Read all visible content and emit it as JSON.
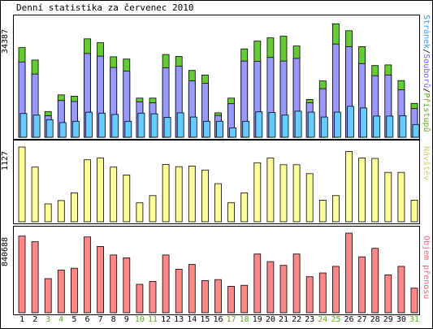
{
  "title": "Denní statistika za červenec 2010",
  "colors": {
    "visits": "#66cc33",
    "pages": "#9999ff",
    "files": "#66ccff",
    "hosts": "#ffff99",
    "traffic": "#ff8888",
    "weekend_day": "#66aa22",
    "weekday": "#000000",
    "label_visits": "#66aa22",
    "label_pages": "#6666ff",
    "label_files": "#3399ff",
    "label_hosts": "#cccc66",
    "label_traffic": "#ee6677"
  },
  "legend": {
    "top_files": "Stránek",
    "top_pages": "Souborů",
    "top_visits": "Přístupů",
    "sep": "/",
    "mid": "Návštěv",
    "bottom": "Objem přenosu"
  },
  "chart_data": [
    {
      "type": "bar",
      "ylabel": "34387",
      "ylim": [
        0,
        34387
      ],
      "categories": [
        "1",
        "2",
        "3",
        "4",
        "5",
        "6",
        "7",
        "8",
        "9",
        "10",
        "11",
        "12",
        "13",
        "14",
        "15",
        "16",
        "17",
        "18",
        "19",
        "20",
        "21",
        "22",
        "23",
        "24",
        "25",
        "26",
        "27",
        "28",
        "29",
        "30",
        "31"
      ],
      "series": [
        {
          "name": "Přístupů",
          "values": [
            27500,
            23700,
            7900,
            13000,
            12600,
            30200,
            29000,
            24700,
            24000,
            12000,
            12000,
            25400,
            24800,
            20500,
            19100,
            7500,
            12000,
            27100,
            29500,
            30500,
            31000,
            28000,
            11600,
            17300,
            34800,
            32700,
            27800,
            22000,
            22200,
            17400,
            10400
          ]
        },
        {
          "name": "Souborů",
          "values": [
            23100,
            19400,
            6600,
            11300,
            11000,
            25700,
            24900,
            21400,
            20300,
            10900,
            10600,
            21300,
            21800,
            17300,
            16600,
            6700,
            10300,
            23400,
            23300,
            24500,
            23400,
            24200,
            10600,
            14900,
            28600,
            27800,
            22600,
            18900,
            19100,
            14600,
            8800
          ]
        },
        {
          "name": "Stránek",
          "values": [
            7300,
            6800,
            5400,
            4500,
            4900,
            7700,
            7400,
            7000,
            4900,
            7400,
            7200,
            6100,
            7500,
            6200,
            4900,
            4900,
            2900,
            4900,
            7800,
            7600,
            6800,
            8000,
            7700,
            6200,
            7700,
            9500,
            9000,
            6500,
            6500,
            6600,
            3900
          ]
        }
      ]
    },
    {
      "type": "bar",
      "ylabel": "1127",
      "ylim": [
        0,
        1127
      ],
      "categories": [
        "1",
        "2",
        "3",
        "4",
        "5",
        "6",
        "7",
        "8",
        "9",
        "10",
        "11",
        "12",
        "13",
        "14",
        "15",
        "16",
        "17",
        "18",
        "19",
        "20",
        "21",
        "22",
        "23",
        "24",
        "25",
        "26",
        "27",
        "28",
        "29",
        "30",
        "31"
      ],
      "series": [
        {
          "name": "Návštěv",
          "values": [
            1127,
            825,
            270,
            320,
            435,
            935,
            960,
            825,
            705,
            285,
            395,
            865,
            830,
            840,
            780,
            575,
            285,
            435,
            890,
            960,
            860,
            860,
            725,
            325,
            395,
            1060,
            960,
            955,
            745,
            745,
            325
          ]
        }
      ]
    },
    {
      "type": "bar",
      "ylabel": "840688",
      "ylim": [
        0,
        840688
      ],
      "categories": [
        "1",
        "2",
        "3",
        "4",
        "5",
        "6",
        "7",
        "8",
        "9",
        "10",
        "11",
        "12",
        "13",
        "14",
        "15",
        "16",
        "17",
        "18",
        "19",
        "20",
        "21",
        "22",
        "23",
        "24",
        "25",
        "26",
        "27",
        "28",
        "29",
        "30",
        "31"
      ],
      "series": [
        {
          "name": "Objem přenosu",
          "values": [
            810000,
            750000,
            360000,
            450000,
            470000,
            800000,
            700000,
            610000,
            580000,
            300000,
            330000,
            610000,
            460000,
            510000,
            340000,
            350000,
            280000,
            290000,
            620000,
            540000,
            500000,
            620000,
            380000,
            420000,
            490000,
            840688,
            590000,
            680000,
            400000,
            490000,
            260000
          ]
        }
      ]
    }
  ],
  "x_weekend": [
    false,
    false,
    true,
    true,
    false,
    false,
    false,
    false,
    false,
    true,
    true,
    false,
    false,
    false,
    false,
    false,
    true,
    true,
    false,
    false,
    false,
    false,
    false,
    true,
    true,
    false,
    false,
    false,
    false,
    false,
    true
  ]
}
